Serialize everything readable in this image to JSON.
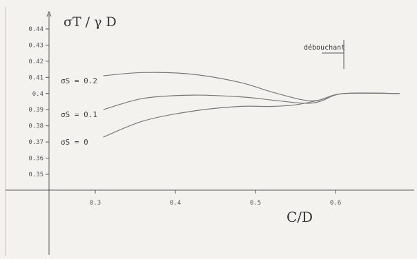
{
  "chart_data": {
    "type": "line",
    "ylabel": "σT / γ D",
    "xlabel": "C/D",
    "xlim": [
      0.25,
      0.68
    ],
    "ylim": [
      0.34,
      0.445
    ],
    "x_ticks": [
      0.3,
      0.4,
      0.5,
      0.6
    ],
    "y_ticks": [
      0.35,
      0.36,
      0.37,
      0.38,
      0.39,
      0.4,
      0.41,
      0.42,
      0.43,
      0.44
    ],
    "x_tick_labels": [
      "0.3",
      "0.4",
      "0.5",
      "0.6"
    ],
    "y_tick_labels": [
      "0.35",
      "0.36",
      "0.37",
      "0.38",
      "0.39",
      "0.4",
      "0.41",
      "0.42",
      "0.43",
      "0.44"
    ],
    "series": [
      {
        "name": "σS = 0.2",
        "x": [
          0.31,
          0.36,
          0.42,
          0.48,
          0.52,
          0.56,
          0.58,
          0.61,
          0.68
        ],
        "y": [
          0.411,
          0.413,
          0.412,
          0.407,
          0.401,
          0.396,
          0.396,
          0.4,
          0.4
        ]
      },
      {
        "name": "σS = 0.1",
        "x": [
          0.31,
          0.36,
          0.42,
          0.48,
          0.52,
          0.56,
          0.58,
          0.61,
          0.68
        ],
        "y": [
          0.39,
          0.397,
          0.399,
          0.398,
          0.396,
          0.394,
          0.395,
          0.4,
          0.4
        ]
      },
      {
        "name": "σS = 0",
        "x": [
          0.31,
          0.36,
          0.42,
          0.48,
          0.52,
          0.55,
          0.58,
          0.61,
          0.68
        ],
        "y": [
          0.373,
          0.383,
          0.389,
          0.392,
          0.392,
          0.393,
          0.396,
          0.4,
          0.4
        ]
      }
    ],
    "annotation": {
      "text": "débouchant",
      "x": 0.607
    }
  },
  "colors": {
    "axis": "#555555",
    "line": "#777777",
    "background": "#f4f2ee"
  }
}
